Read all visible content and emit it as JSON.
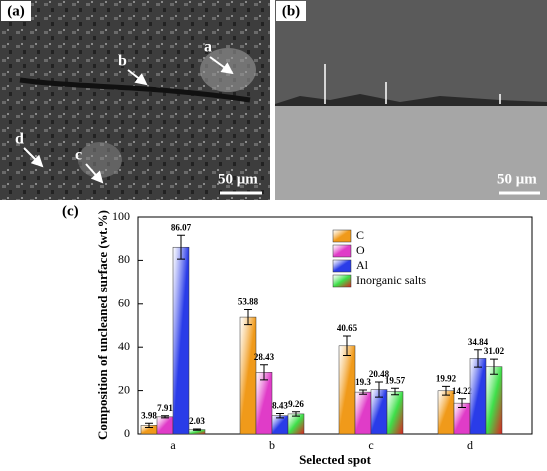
{
  "panels": {
    "a": {
      "label": "(a)",
      "markers": [
        "a",
        "b",
        "c",
        "d"
      ],
      "scale": "50 μm"
    },
    "b": {
      "label": "(b)",
      "scale": "50 μm"
    }
  },
  "chart_data": {
    "type": "bar",
    "panel_label": "(c)",
    "y_label": "Composition of uncleaned surface (wt.%)",
    "x_label": "Selected spot",
    "categories": [
      "a",
      "b",
      "c",
      "d"
    ],
    "ylim": [
      0,
      100
    ],
    "yticks": [
      0,
      20,
      40,
      60,
      80,
      100
    ],
    "series": [
      {
        "name": "C",
        "color": "#f09a1a",
        "values": [
          3.98,
          53.88,
          40.65,
          19.92
        ],
        "errors": [
          1,
          3.5,
          4.5,
          2
        ]
      },
      {
        "name": "O",
        "color": "#e03cc8",
        "values": [
          7.91,
          28.43,
          19.3,
          14.22
        ],
        "errors": [
          0.5,
          3.5,
          1,
          2
        ]
      },
      {
        "name": "Al",
        "color": "#2a3ce8",
        "values": [
          86.07,
          8.43,
          20.48,
          34.84
        ],
        "errors": [
          5.5,
          1,
          3.5,
          4
        ]
      },
      {
        "name": "Inorganic salts",
        "color": "#3ee04a",
        "values": [
          2.03,
          9.26,
          19.57,
          31.02
        ],
        "errors": [
          0.3,
          1,
          1.5,
          3.5
        ]
      }
    ]
  }
}
